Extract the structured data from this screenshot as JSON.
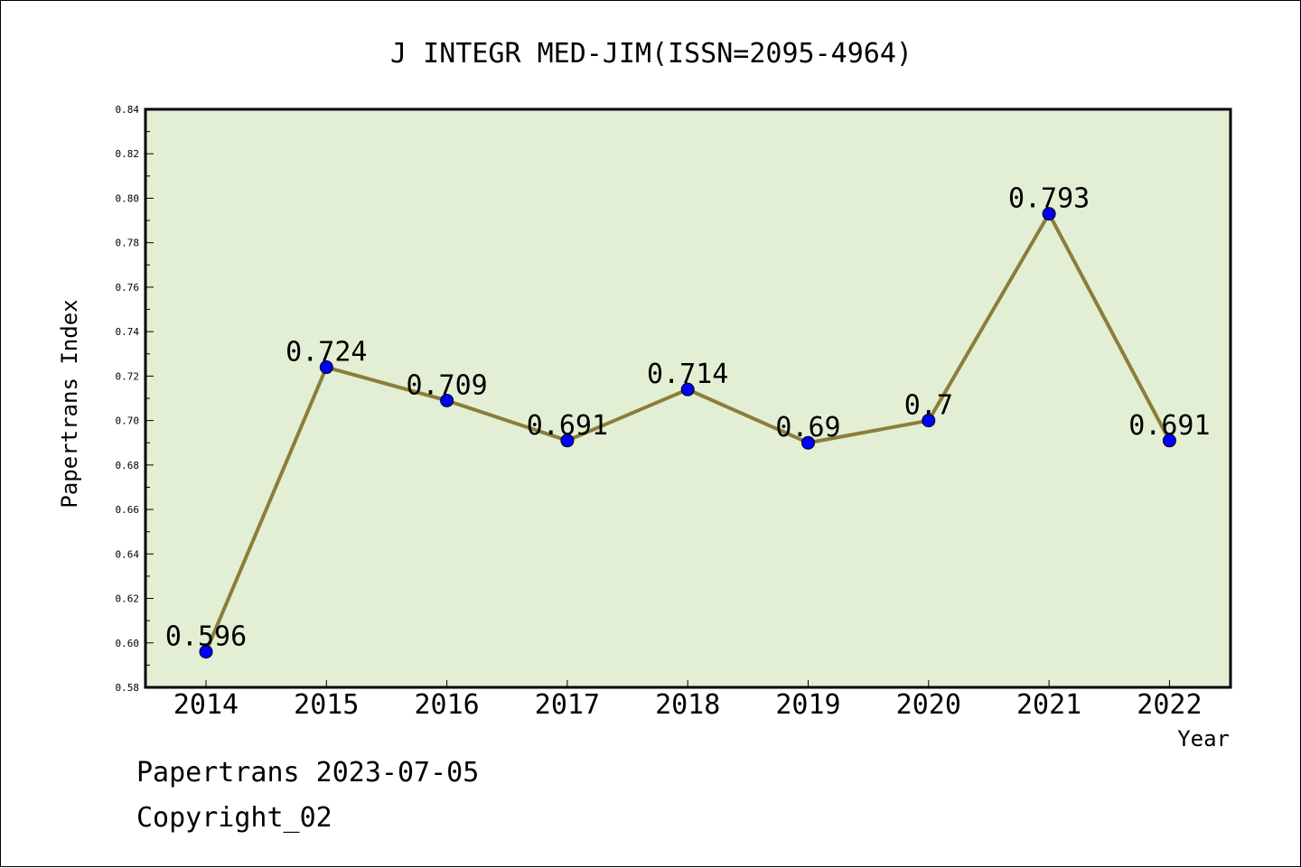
{
  "chart_data": {
    "type": "line",
    "title": "J INTEGR MED-JIM(ISSN=2095-4964)",
    "xlabel": "Year",
    "ylabel": "Papertrans Index",
    "categories": [
      "2014",
      "2015",
      "2016",
      "2017",
      "2018",
      "2019",
      "2020",
      "2021",
      "2022"
    ],
    "series": [
      {
        "values": [
          0.596,
          0.724,
          0.709,
          0.691,
          0.714,
          0.69,
          0.7,
          0.793,
          0.691
        ],
        "labels": [
          "0.596",
          "0.724",
          "0.709",
          "0.691",
          "0.714",
          "0.69",
          "0.7",
          "0.793",
          "0.691"
        ]
      }
    ],
    "ylim": [
      0.58,
      0.84
    ],
    "yticks": [
      "0.58",
      "0.60",
      "0.62",
      "0.64",
      "0.66",
      "0.68",
      "0.70",
      "0.72",
      "0.74",
      "0.76",
      "0.78",
      "0.80",
      "0.82",
      "0.84"
    ],
    "grid": false,
    "colors": {
      "plot_background": "#e2efd4",
      "line": "#8b7d3a",
      "marker": "#0000ff"
    }
  },
  "footer": {
    "line1": "Papertrans 2023-07-05",
    "line2": "Copyright_02"
  }
}
